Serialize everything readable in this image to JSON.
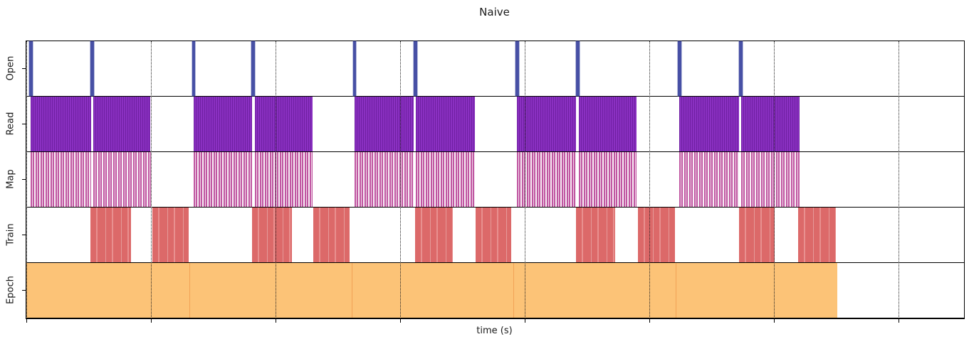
{
  "figure": {
    "background": "#ffffff",
    "border_color": "#000000",
    "grid_color": "#222222"
  },
  "chart_data": {
    "type": "timeline",
    "title": "Naive",
    "xlabel": "time (s)",
    "ylabel": "",
    "x_axis": {
      "tick_labels": [],
      "tick_positions_pct": [
        0,
        13.29,
        26.58,
        39.86,
        53.15,
        66.44,
        79.73,
        93.01
      ],
      "gridline_style": "dotted",
      "range_pct": [
        0,
        100
      ]
    },
    "legend": "none",
    "rows": [
      {
        "label": "Open",
        "pattern": "spike",
        "color": "#4750a5",
        "intervals_pct": [
          [
            0.3,
            0.65
          ],
          [
            6.83,
            7.18
          ],
          [
            17.68,
            18.03
          ],
          [
            23.99,
            24.34
          ],
          [
            34.84,
            35.19
          ],
          [
            41.3,
            41.65
          ],
          [
            52.16,
            52.51
          ],
          [
            58.61,
            58.96
          ],
          [
            69.47,
            69.82
          ],
          [
            76.0,
            76.35
          ]
        ]
      },
      {
        "label": "Read",
        "pattern": "dense-stripes",
        "color": "#8a30c1",
        "intervals_pct": [
          [
            0.46,
            6.91
          ],
          [
            7.14,
            13.21
          ],
          [
            17.84,
            24.07
          ],
          [
            24.37,
            30.52
          ],
          [
            35.0,
            41.31
          ],
          [
            41.53,
            47.84
          ],
          [
            52.32,
            58.62
          ],
          [
            58.92,
            65.07
          ],
          [
            69.63,
            76.01
          ],
          [
            76.23,
            82.46
          ]
        ]
      },
      {
        "label": "Map",
        "pattern": "sparse-stripes",
        "color": "#c057a2",
        "intervals_pct": [
          [
            0.46,
            6.91
          ],
          [
            7.14,
            13.29
          ],
          [
            17.84,
            24.07
          ],
          [
            24.37,
            30.52
          ],
          [
            35.0,
            41.31
          ],
          [
            41.53,
            47.84
          ],
          [
            52.32,
            58.62
          ],
          [
            58.92,
            65.07
          ],
          [
            69.63,
            76.01
          ],
          [
            76.23,
            82.46
          ]
        ]
      },
      {
        "label": "Train",
        "pattern": "block",
        "color": "#dc6969",
        "intervals_pct": [
          [
            6.83,
            11.16
          ],
          [
            13.44,
            17.31
          ],
          [
            24.07,
            28.32
          ],
          [
            30.6,
            34.47
          ],
          [
            41.46,
            45.48
          ],
          [
            47.91,
            51.71
          ],
          [
            58.62,
            62.79
          ],
          [
            65.22,
            69.17
          ],
          [
            76.01,
            79.8
          ],
          [
            82.31,
            86.33
          ]
        ]
      },
      {
        "label": "Epoch",
        "pattern": "epoch",
        "color": "#fcc377",
        "intervals_pct": [
          [
            0.0,
            17.39
          ],
          [
            17.39,
            34.7
          ],
          [
            34.7,
            51.94
          ],
          [
            51.94,
            69.25
          ],
          [
            69.25,
            86.48
          ]
        ]
      }
    ]
  }
}
